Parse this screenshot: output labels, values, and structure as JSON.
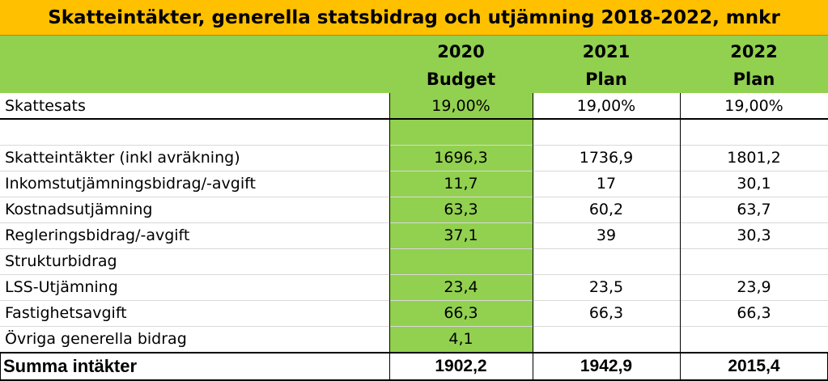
{
  "title": "Skatteintäkter, generella statsbidrag och utjämning 2018-2022, mnkr",
  "columns": [
    {
      "year": "2020",
      "kind": "Budget"
    },
    {
      "year": "2021",
      "kind": "Plan"
    },
    {
      "year": "2022",
      "kind": "Plan"
    }
  ],
  "rows": [
    {
      "label": "Skattesats",
      "v2020": "19,00%",
      "v2021": "19,00%",
      "v2022": "19,00%"
    },
    {
      "label": "",
      "v2020": "",
      "v2021": "",
      "v2022": ""
    },
    {
      "label": "Skatteintäkter (inkl avräkning)",
      "v2020": "1696,3",
      "v2021": "1736,9",
      "v2022": "1801,2"
    },
    {
      "label": "Inkomstutjämningsbidrag/-avgift",
      "v2020": "11,7",
      "v2021": "17",
      "v2022": "30,1"
    },
    {
      "label": "Kostnadsutjämning",
      "v2020": "63,3",
      "v2021": "60,2",
      "v2022": "63,7"
    },
    {
      "label": "Regleringsbidrag/-avgift",
      "v2020": "37,1",
      "v2021": "39",
      "v2022": "30,3"
    },
    {
      "label": "Strukturbidrag",
      "v2020": "",
      "v2021": "",
      "v2022": ""
    },
    {
      "label": "LSS-Utjämning",
      "v2020": "23,4",
      "v2021": "23,5",
      "v2022": "23,9"
    },
    {
      "label": "Fastighetsavgift",
      "v2020": "66,3",
      "v2021": "66,3",
      "v2022": "66,3"
    },
    {
      "label": "Övriga generella bidrag",
      "v2020": "4,1",
      "v2021": "",
      "v2022": ""
    }
  ],
  "total": {
    "label": "Summa intäkter",
    "v2020": "1902,2",
    "v2021": "1942,9",
    "v2022": "2015,4"
  },
  "colors": {
    "title_bg": "#ffc000",
    "header_bg": "#92d050",
    "budget_col_bg": "#92d050"
  }
}
